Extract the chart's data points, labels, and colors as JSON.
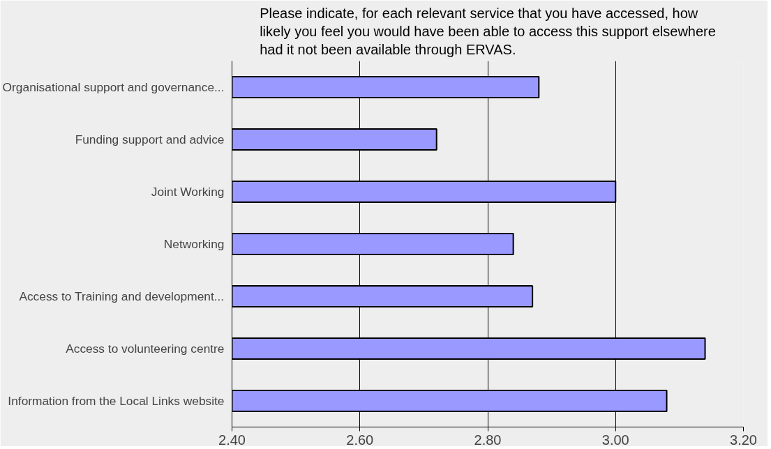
{
  "chart_data": {
    "type": "bar",
    "orientation": "horizontal",
    "title": "Please indicate, for each relevant service that you have accessed, how likely you feel you would have been able to access this support elsewhere had it not been available through ERVAS.",
    "categories": [
      "Organisational support and governance...",
      "Funding support and advice",
      "Joint Working",
      "Networking",
      "Access to Training and development...",
      "Access to volunteering centre",
      "Information from the Local Links website"
    ],
    "values": [
      2.88,
      2.72,
      3.0,
      2.84,
      2.87,
      3.14,
      3.08
    ],
    "color": "#9999ff",
    "xlim": [
      2.4,
      3.2
    ],
    "xticks": [
      {
        "value": 2.4,
        "label": "2.40"
      },
      {
        "value": 2.6,
        "label": "2.60"
      },
      {
        "value": 2.8,
        "label": "2.80"
      },
      {
        "value": 3.0,
        "label": "3.00"
      },
      {
        "value": 3.2,
        "label": "3.20"
      }
    ],
    "grid": "x"
  }
}
